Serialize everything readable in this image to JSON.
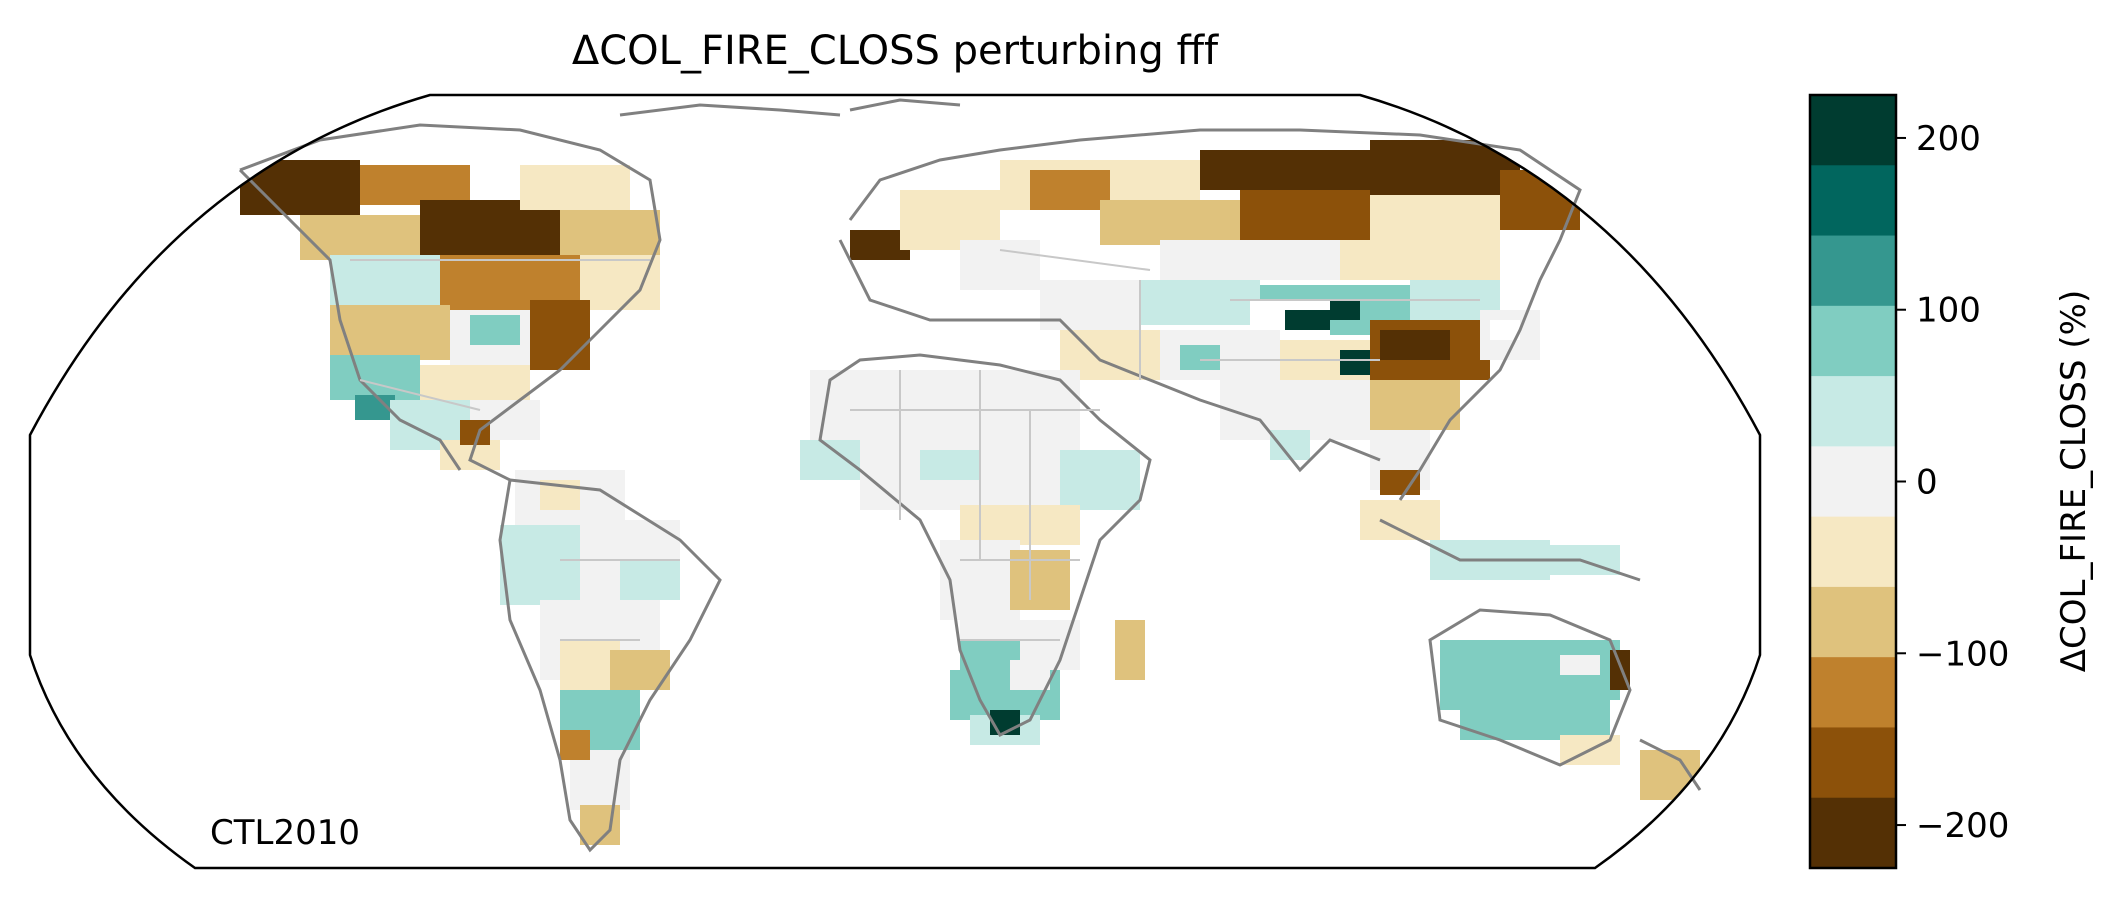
{
  "title": "ΔCOL_FIRE_CLOSS perturbing fff",
  "experiment_label": "CTL2010",
  "projection": "Robinson",
  "colorbar": {
    "label": "ΔCOL_FIRE_CLOSS (%)",
    "ticks": [
      "200",
      "100",
      "0",
      "−100",
      "−200"
    ],
    "tick_values": [
      200,
      100,
      0,
      -100,
      -200
    ],
    "range": [
      -225,
      225
    ],
    "bins_top_to_bottom": [
      {
        "color": "#003c30"
      },
      {
        "color": "#01665e"
      },
      {
        "color": "#35978f"
      },
      {
        "color": "#80cdc1"
      },
      {
        "color": "#c7eae5"
      },
      {
        "color": "#f2f2f2"
      },
      {
        "color": "#f6e8c3"
      },
      {
        "color": "#dfc27d"
      },
      {
        "color": "#bf812d"
      },
      {
        "color": "#8c510a"
      },
      {
        "color": "#543005"
      }
    ]
  },
  "map_colors": {
    "coastline": "#808080",
    "borders": "#c8c8c8",
    "outline": "#000000"
  },
  "chart_data": {
    "type": "heatmap",
    "title": "ΔCOL_FIRE_CLOSS perturbing fff",
    "colorbar_label": "ΔCOL_FIRE_CLOSS (%)",
    "colorbar_range": [
      -225,
      225
    ],
    "colorbar_ticks": [
      -200,
      -100,
      0,
      100,
      200
    ],
    "cmap": "BrBG",
    "annotation": "CTL2010"
  }
}
